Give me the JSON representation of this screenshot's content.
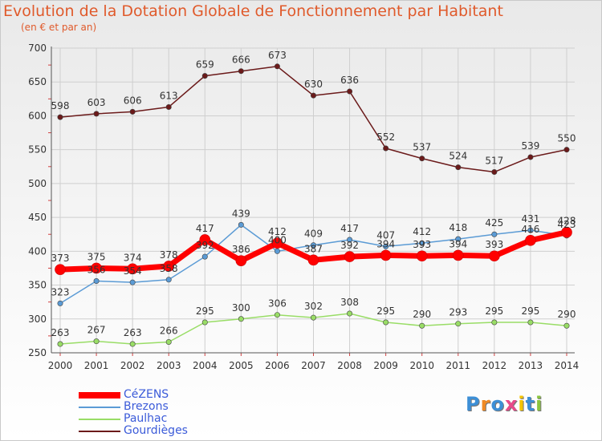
{
  "title": "Evolution de la Dotation Globale de Fonctionnement par Habitant",
  "subtitle": "(en € et par an)",
  "logo_text": "Proxiti",
  "colors": {
    "title": "#e05a2b",
    "legend_text": "#3b5bd9",
    "grid": "#cfcfcf"
  },
  "chart_data": {
    "type": "line",
    "title": "Evolution de la Dotation Globale de Fonctionnement par Habitant",
    "subtitle": "(en € et par an)",
    "xlabel": "",
    "ylabel": "",
    "x": [
      2000,
      2001,
      2002,
      2003,
      2004,
      2005,
      2006,
      2007,
      2008,
      2009,
      2010,
      2011,
      2012,
      2013,
      2014
    ],
    "ylim": [
      250,
      700
    ],
    "yticks": [
      250,
      300,
      350,
      400,
      450,
      500,
      550,
      600,
      650,
      700
    ],
    "grid": true,
    "legend_position": "bottom-left",
    "series": [
      {
        "name": "Gourdièges",
        "color": "#6b1a1a",
        "width": 1.5,
        "values": [
          598,
          603,
          606,
          613,
          659,
          666,
          673,
          630,
          636,
          552,
          537,
          524,
          517,
          539,
          550
        ]
      },
      {
        "name": "Paulhac",
        "color": "#99dd66",
        "width": 1.5,
        "values": [
          263,
          267,
          263,
          266,
          295,
          300,
          306,
          302,
          308,
          295,
          290,
          293,
          295,
          295,
          290
        ]
      },
      {
        "name": "Brezons",
        "color": "#5b9bd5",
        "width": 1.5,
        "values": [
          323,
          356,
          354,
          358,
          392,
          439,
          400,
          409,
          417,
          407,
          412,
          418,
          425,
          431,
          423
        ]
      },
      {
        "name": "CéZENS",
        "color": "#ff0000",
        "width": 7,
        "values": [
          373,
          375,
          374,
          378,
          417,
          386,
          412,
          387,
          392,
          394,
          393,
          394,
          393,
          416,
          428
        ]
      }
    ],
    "point_labels": {
      "Gourdièges": [
        "598",
        "603",
        "606",
        "613",
        "659",
        "666",
        "673",
        "630",
        "636",
        "552",
        "537",
        "524",
        "517",
        "539",
        "550"
      ],
      "Paulhac": [
        "263",
        "267",
        "263",
        "266",
        "295",
        "300",
        "306",
        "302",
        "308",
        "295",
        "290",
        "293",
        "295",
        "295",
        "290"
      ],
      "Brezons": [
        "323",
        "356",
        "354",
        "358",
        "392",
        "439",
        "400",
        "409",
        "417",
        "407",
        "412",
        "418",
        "425",
        "431",
        "423"
      ],
      "CéZENS": [
        "373",
        "375",
        "374",
        "378",
        "417",
        "386",
        "412",
        "387",
        "392",
        "394",
        "393",
        "394",
        "393",
        "416",
        "428"
      ]
    },
    "legend": [
      "CéZENS",
      "Brezons",
      "Paulhac",
      "Gourdièges"
    ]
  }
}
